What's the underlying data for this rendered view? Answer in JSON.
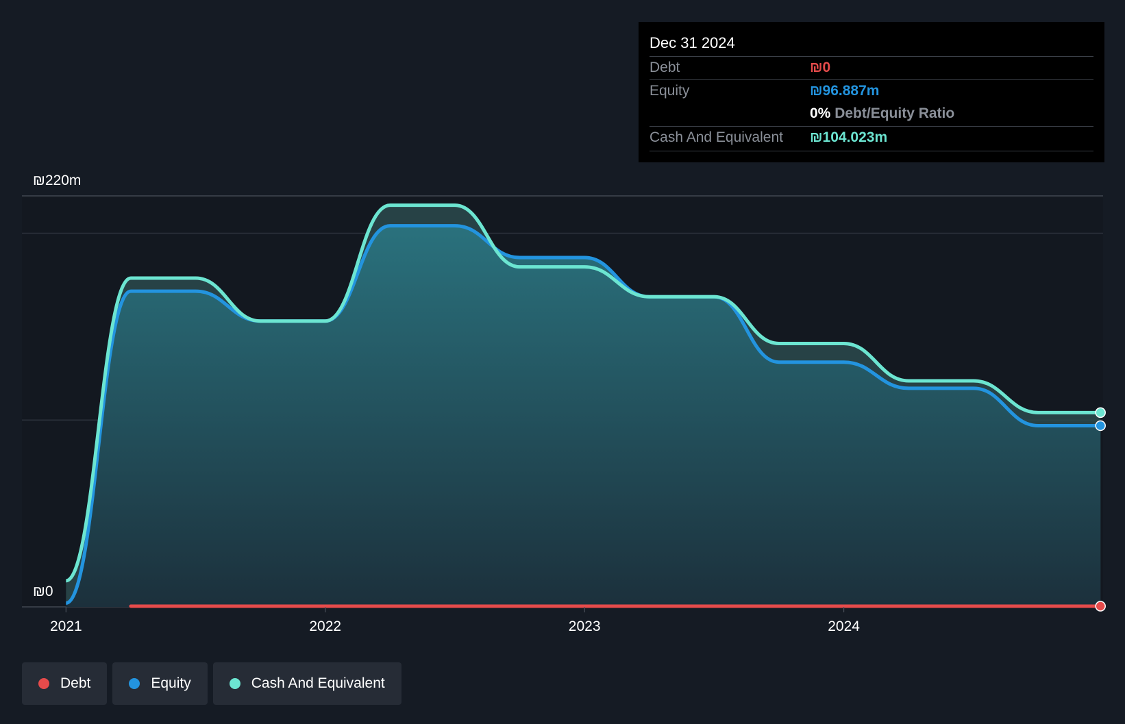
{
  "tooltip": {
    "date": "Dec 31 2024",
    "rows": [
      {
        "label": "Debt",
        "value": "₪0"
      },
      {
        "label": "Equity",
        "value": "₪96.887m"
      },
      {
        "label": "",
        "value": "0%",
        "suffix": "Debt/Equity Ratio"
      },
      {
        "label": "Cash And Equivalent",
        "value": "₪104.023m"
      }
    ]
  },
  "legend": {
    "items": [
      {
        "label": "Debt"
      },
      {
        "label": "Equity"
      },
      {
        "label": "Cash And Equivalent"
      }
    ]
  },
  "colors": {
    "background": "#151b24",
    "debt": "#e64b4b",
    "equity": "#2394df",
    "cash": "#6ce5d1"
  },
  "chart_data": {
    "type": "area",
    "title": "",
    "xlabel": "",
    "ylabel": "",
    "ylim": [
      0,
      220
    ],
    "y_tick_labels": [
      "₪220m",
      "₪0"
    ],
    "x_tick_labels": [
      "2021",
      "2022",
      "2023",
      "2024"
    ],
    "x_ticks": [
      2021.0,
      2022.0,
      2023.0,
      2024.0
    ],
    "xlim": [
      2020.83,
      2025.0
    ],
    "grid": true,
    "legend_placement": "bottom-left",
    "series": [
      {
        "name": "Debt",
        "x": [
          2021.25,
          2024.99
        ],
        "values": [
          0,
          0
        ]
      },
      {
        "name": "Equity",
        "x": [
          2021.0,
          2021.25,
          2021.5,
          2021.75,
          2022.0,
          2022.25,
          2022.5,
          2022.75,
          2023.0,
          2023.25,
          2023.5,
          2023.75,
          2024.0,
          2024.25,
          2024.5,
          2024.75,
          2024.99
        ],
        "values": [
          2,
          169,
          169,
          153,
          153,
          204,
          204,
          187,
          187,
          166,
          166,
          131,
          131,
          117,
          117,
          97,
          97
        ]
      },
      {
        "name": "Cash And Equivalent",
        "x": [
          2021.0,
          2021.25,
          2021.5,
          2021.75,
          2022.0,
          2022.25,
          2022.5,
          2022.75,
          2023.0,
          2023.25,
          2023.5,
          2023.75,
          2024.0,
          2024.25,
          2024.5,
          2024.75,
          2024.99
        ],
        "values": [
          14,
          176,
          176,
          153,
          153,
          215,
          215,
          182,
          182,
          166,
          166,
          141,
          141,
          121,
          121,
          104,
          104
        ]
      }
    ]
  }
}
